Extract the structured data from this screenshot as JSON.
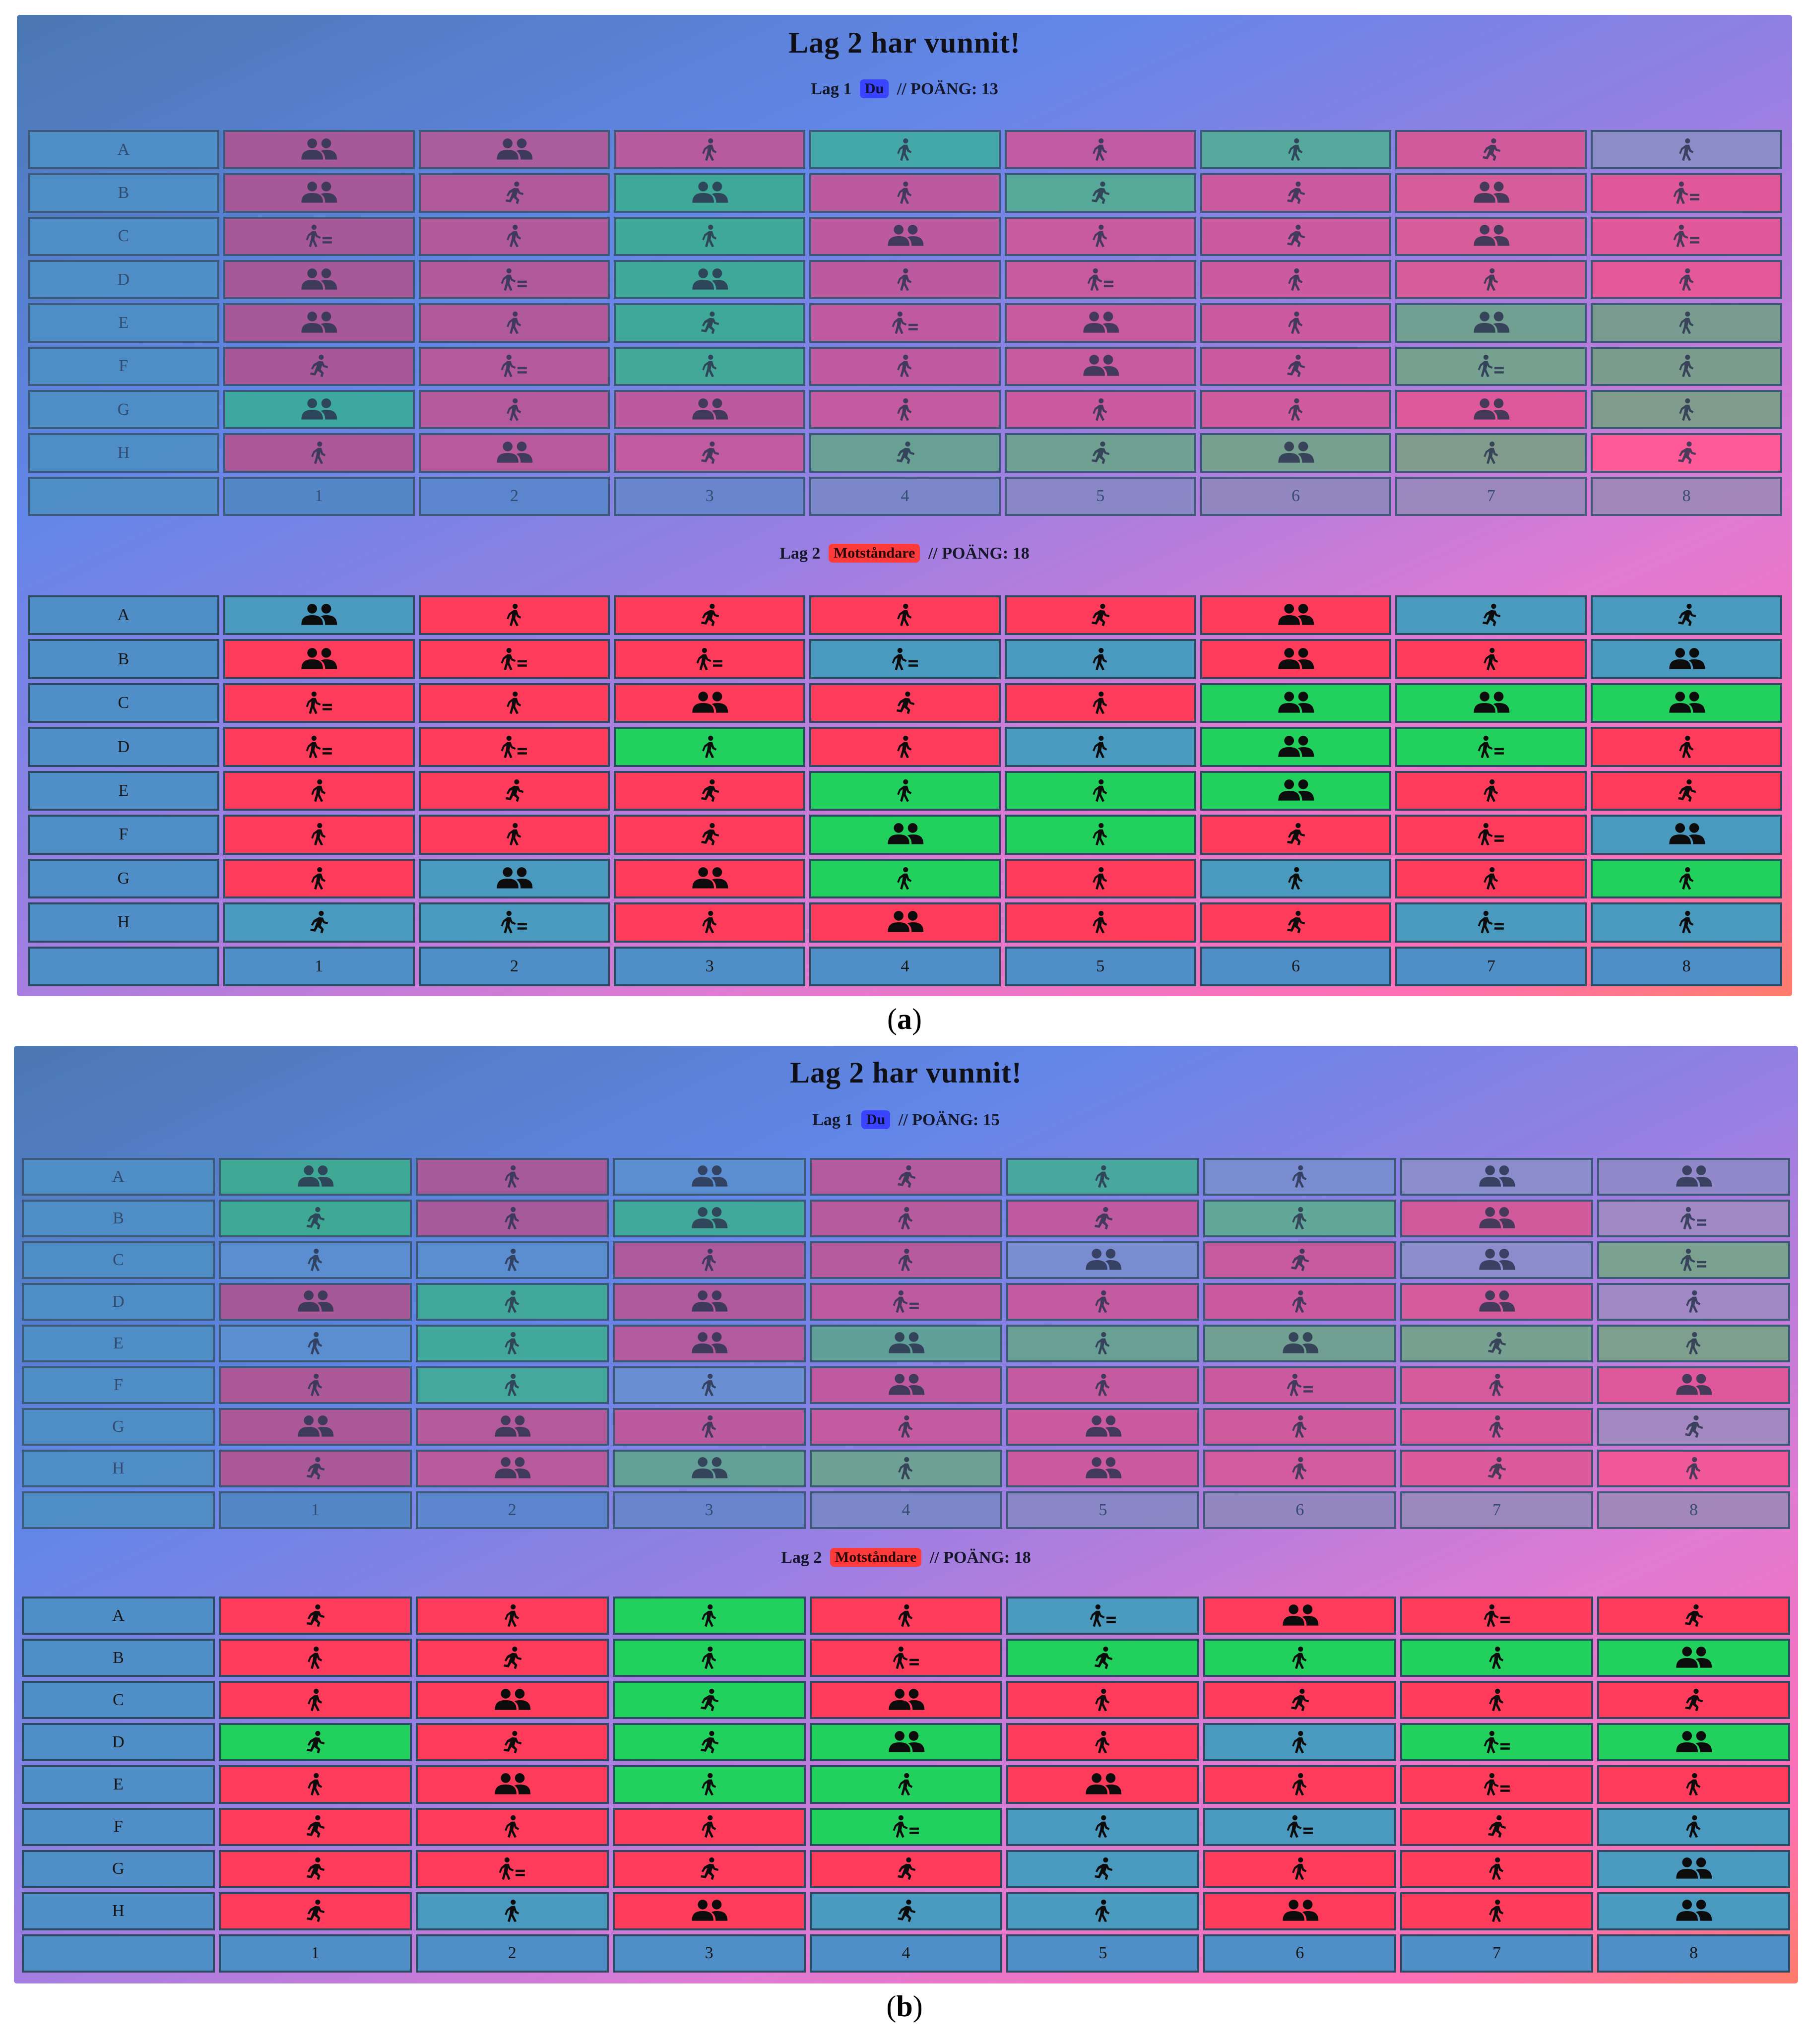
{
  "colors": {
    "red": "#ff3b5c",
    "green": "#22d05e",
    "blue": "#4a9ac0",
    "badge_you": "#3a44ff",
    "badge_opp": "#ff3a3a"
  },
  "icons": {
    "P": "person-walking-icon",
    "G": "group-icon",
    "S": "person-running-icon",
    "K": "person-pushing-cart-icon"
  },
  "rows": [
    "A",
    "B",
    "C",
    "D",
    "E",
    "F",
    "G",
    "H"
  ],
  "cols": [
    "1",
    "2",
    "3",
    "4",
    "5",
    "6",
    "7",
    "8"
  ],
  "panels": [
    {
      "id": "a",
      "caption": "(a)",
      "caption_letter": "a",
      "title": "Lag 2 har vunnit!",
      "team1": {
        "name": "Lag 1",
        "badge": "Du",
        "score_text": "// POÄNG: 13"
      },
      "team2": {
        "name": "Lag 2",
        "badge": "Motståndare",
        "score_text": "// POÄNG: 18"
      },
      "board1": {
        "icons": [
          [
            "G",
            "G",
            "P",
            "P",
            "P",
            "P",
            "S",
            "P"
          ],
          [
            "G",
            "S",
            "G",
            "P",
            "S",
            "S",
            "G",
            "K"
          ],
          [
            "K",
            "P",
            "P",
            "G",
            "P",
            "S",
            "G",
            "K"
          ],
          [
            "G",
            "K",
            "G",
            "P",
            "K",
            "P",
            "P",
            "P"
          ],
          [
            "G",
            "P",
            "S",
            "K",
            "G",
            "P",
            "G",
            "P"
          ],
          [
            "S",
            "K",
            "P",
            "P",
            "G",
            "S",
            "K",
            "P"
          ],
          [
            "G",
            "P",
            "G",
            "P",
            "P",
            "P",
            "G",
            "P"
          ],
          [
            "P",
            "G",
            "S",
            "S",
            "S",
            "G",
            "P",
            "S"
          ]
        ],
        "colors": [
          [
            "#a65898",
            "#aa5c9c",
            "#b85a9e",
            "#45a8a8",
            "#c05aa2",
            "#55a89c",
            "#d05a9c",
            "#8c8cc8"
          ],
          [
            "#a65898",
            "#b05a9c",
            "#40a898",
            "#bc5aa0",
            "#56a898",
            "#cc5a9e",
            "#d65c9a",
            "#e0589a"
          ],
          [
            "#a65898",
            "#b05a9c",
            "#40a898",
            "#bc5aa0",
            "#c85aa0",
            "#cc5a9e",
            "#d65c9a",
            "#e0589a"
          ],
          [
            "#a65898",
            "#b05a9c",
            "#40a898",
            "#bc5aa0",
            "#c85aa0",
            "#cc5a9e",
            "#d65c9a",
            "#e4589a"
          ],
          [
            "#a65898",
            "#b05a9c",
            "#40a898",
            "#c05aa0",
            "#c85aa0",
            "#cc5a9e",
            "#72a092",
            "#7a9c90"
          ],
          [
            "#a85898",
            "#b45a9c",
            "#44a898",
            "#c05aa0",
            "#c85aa0",
            "#cc5a9e",
            "#76a090",
            "#7c9c8e"
          ],
          [
            "#3ca8a0",
            "#b45a9c",
            "#bc5aa0",
            "#c45aa0",
            "#cc5aa0",
            "#d05a9e",
            "#e0589c",
            "#809c8c"
          ],
          [
            "#aa5898",
            "#b85a9c",
            "#c25aa0",
            "#68a094",
            "#70a092",
            "#78a090",
            "#829c8c",
            "#ff5a98"
          ]
        ],
        "axis_colors": [
          "#5288c6",
          "#5a86cc",
          "#6886cc",
          "#7a88c8",
          "#8888c4",
          "#9288c0",
          "#9a88bc",
          "#a088ba"
        ]
      },
      "board2": {
        "icons": [
          [
            "G",
            "P",
            "S",
            "P",
            "S",
            "G",
            "S",
            "S"
          ],
          [
            "G",
            "K",
            "K",
            "K",
            "P",
            "G",
            "P",
            "G"
          ],
          [
            "K",
            "P",
            "G",
            "S",
            "P",
            "G",
            "G",
            "G"
          ],
          [
            "K",
            "K",
            "P",
            "P",
            "P",
            "G",
            "K",
            "P"
          ],
          [
            "P",
            "S",
            "S",
            "P",
            "P",
            "G",
            "P",
            "S"
          ],
          [
            "P",
            "P",
            "S",
            "G",
            "P",
            "S",
            "K",
            "G"
          ],
          [
            "P",
            "G",
            "G",
            "P",
            "P",
            "P",
            "P",
            "P"
          ],
          [
            "S",
            "K",
            "P",
            "G",
            "P",
            "S",
            "K",
            "P"
          ]
        ],
        "cells": [
          [
            "b",
            "r",
            "r",
            "r",
            "r",
            "r",
            "b",
            "b"
          ],
          [
            "r",
            "r",
            "r",
            "b",
            "b",
            "r",
            "r",
            "b"
          ],
          [
            "r",
            "r",
            "r",
            "r",
            "r",
            "g",
            "g",
            "g"
          ],
          [
            "r",
            "r",
            "g",
            "r",
            "b",
            "g",
            "g",
            "r"
          ],
          [
            "r",
            "r",
            "r",
            "g",
            "g",
            "g",
            "r",
            "r"
          ],
          [
            "r",
            "r",
            "r",
            "g",
            "g",
            "r",
            "r",
            "b"
          ],
          [
            "r",
            "b",
            "r",
            "g",
            "r",
            "b",
            "r",
            "g"
          ],
          [
            "b",
            "b",
            "r",
            "r",
            "r",
            "r",
            "b",
            "b"
          ]
        ]
      }
    },
    {
      "id": "b",
      "caption": "(b)",
      "caption_letter": "b",
      "title": "Lag 2 har vunnit!",
      "team1": {
        "name": "Lag 1",
        "badge": "Du",
        "score_text": "// POÄNG: 15"
      },
      "team2": {
        "name": "Lag 2",
        "badge": "Motståndare",
        "score_text": "// POÄNG: 18"
      },
      "board1": {
        "icons": [
          [
            "G",
            "P",
            "G",
            "S",
            "P",
            "P",
            "G",
            "G"
          ],
          [
            "S",
            "P",
            "G",
            "P",
            "S",
            "P",
            "G",
            "K"
          ],
          [
            "P",
            "P",
            "P",
            "P",
            "G",
            "S",
            "G",
            "K"
          ],
          [
            "G",
            "P",
            "G",
            "K",
            "P",
            "P",
            "G",
            "P"
          ],
          [
            "P",
            "P",
            "G",
            "G",
            "P",
            "G",
            "S",
            "P"
          ],
          [
            "P",
            "P",
            "P",
            "G",
            "P",
            "K",
            "P",
            "G"
          ],
          [
            "G",
            "G",
            "P",
            "P",
            "G",
            "P",
            "P",
            "S"
          ],
          [
            "S",
            "G",
            "G",
            "P",
            "G",
            "P",
            "S",
            "P"
          ]
        ],
        "colors": [
          [
            "#3ea894",
            "#a65a9c",
            "#5a8ed0",
            "#b45a9e",
            "#48a8a0",
            "#7a8cd0",
            "#8a8ccc",
            "#9088c8"
          ],
          [
            "#3ea894",
            "#a65a9c",
            "#42a89c",
            "#b85a9e",
            "#c05aa0",
            "#62a898",
            "#d05a9c",
            "#a088c4"
          ],
          [
            "#5a8ed0",
            "#5a8ed0",
            "#ae5a9e",
            "#b85a9e",
            "#7a8cd0",
            "#c85a9e",
            "#8c8ccc",
            "#7aa090"
          ],
          [
            "#a65898",
            "#42a89c",
            "#b05a9e",
            "#be5aa0",
            "#c45aa0",
            "#cc5a9e",
            "#d45a9c",
            "#a088c4"
          ],
          [
            "#5a8ed0",
            "#42a89c",
            "#b25a9e",
            "#60a098",
            "#6aa094",
            "#72a092",
            "#78a090",
            "#7e9e8e"
          ],
          [
            "#aa5898",
            "#44a89c",
            "#6a8ed2",
            "#c05aa0",
            "#c65aa0",
            "#cc5a9e",
            "#d45a9c",
            "#e0589c"
          ],
          [
            "#aa5898",
            "#b45a9c",
            "#bc5aa0",
            "#c45aa0",
            "#cc5aa0",
            "#d05a9e",
            "#d85a9c",
            "#a488c2"
          ],
          [
            "#aa5898",
            "#b85a9c",
            "#64a098",
            "#6ea094",
            "#cc5aa0",
            "#d25a9e",
            "#dc5a9c",
            "#f0589a"
          ]
        ],
        "axis_colors": [
          "#5288c6",
          "#5a86cc",
          "#6886cc",
          "#7a88c8",
          "#8888c4",
          "#9288c0",
          "#9a88bc",
          "#a088ba"
        ]
      },
      "board2": {
        "icons": [
          [
            "S",
            "P",
            "P",
            "P",
            "K",
            "G",
            "K",
            "S"
          ],
          [
            "P",
            "S",
            "P",
            "K",
            "S",
            "P",
            "P",
            "G"
          ],
          [
            "P",
            "G",
            "S",
            "G",
            "P",
            "S",
            "P",
            "S"
          ],
          [
            "S",
            "S",
            "S",
            "G",
            "P",
            "P",
            "K",
            "G"
          ],
          [
            "P",
            "G",
            "P",
            "P",
            "G",
            "P",
            "K",
            "P"
          ],
          [
            "S",
            "P",
            "P",
            "K",
            "P",
            "K",
            "S",
            "P"
          ],
          [
            "S",
            "K",
            "S",
            "S",
            "S",
            "P",
            "P",
            "G"
          ],
          [
            "S",
            "P",
            "G",
            "S",
            "P",
            "G",
            "P",
            "G"
          ]
        ],
        "cells": [
          [
            "r",
            "r",
            "g",
            "r",
            "b",
            "r",
            "r",
            "r"
          ],
          [
            "r",
            "r",
            "g",
            "r",
            "g",
            "g",
            "g",
            "g"
          ],
          [
            "r",
            "r",
            "g",
            "r",
            "r",
            "r",
            "r",
            "r"
          ],
          [
            "g",
            "r",
            "g",
            "g",
            "r",
            "b",
            "g",
            "g"
          ],
          [
            "r",
            "r",
            "g",
            "g",
            "r",
            "r",
            "r",
            "r"
          ],
          [
            "r",
            "r",
            "r",
            "g",
            "b",
            "b",
            "r",
            "b"
          ],
          [
            "r",
            "r",
            "r",
            "r",
            "b",
            "r",
            "r",
            "b"
          ],
          [
            "r",
            "b",
            "r",
            "b",
            "b",
            "r",
            "r",
            "b"
          ]
        ]
      }
    }
  ]
}
